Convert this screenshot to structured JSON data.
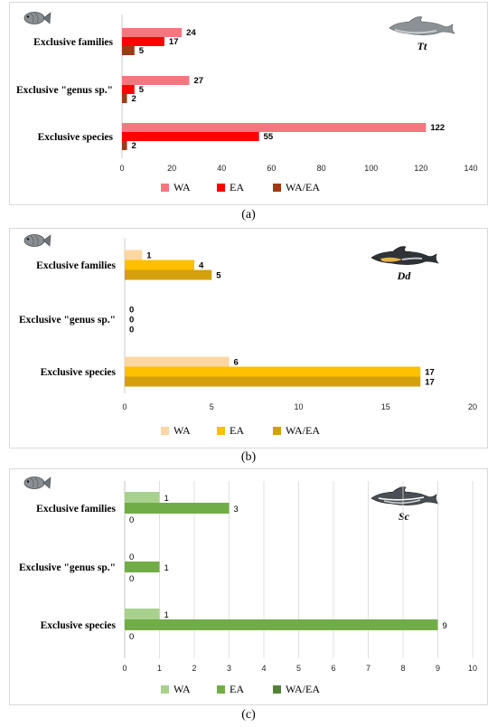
{
  "chart_data": [
    {
      "type": "bar",
      "orientation": "horizontal",
      "panel": "a",
      "caption": "(a)",
      "species_code": "Tt",
      "categories": [
        "Exclusive families",
        "Exclusive \"genus sp.\"",
        "Exclusive species"
      ],
      "series": [
        {
          "name": "WA",
          "color": "#f4777f",
          "values": [
            24,
            27,
            122
          ]
        },
        {
          "name": "EA",
          "color": "#ff0000",
          "values": [
            17,
            5,
            55
          ]
        },
        {
          "name": "WA/EA",
          "color": "#9e3a14",
          "values": [
            5,
            2,
            2
          ]
        }
      ],
      "xlim": [
        0,
        140
      ],
      "xticks": [
        0,
        20,
        40,
        60,
        80,
        100,
        120,
        140
      ],
      "legend": "bottom",
      "grid": false,
      "dlabel_bold": true
    },
    {
      "type": "bar",
      "orientation": "horizontal",
      "panel": "b",
      "caption": "(b)",
      "species_code": "Dd",
      "categories": [
        "Exclusive families",
        "Exclusive \"genus sp.\"",
        "Exclusive species"
      ],
      "series": [
        {
          "name": "WA",
          "color": "#fcd7a1",
          "values": [
            1,
            0,
            6
          ]
        },
        {
          "name": "EA",
          "color": "#ffc000",
          "values": [
            4,
            0,
            17
          ]
        },
        {
          "name": "WA/EA",
          "color": "#d4a00b",
          "values": [
            5,
            0,
            17
          ]
        }
      ],
      "xlim": [
        0,
        20
      ],
      "xticks": [
        0,
        5,
        10,
        15,
        20
      ],
      "legend": "bottom",
      "grid": false,
      "dlabel_bold": true
    },
    {
      "type": "bar",
      "orientation": "horizontal",
      "panel": "c",
      "caption": "(c)",
      "species_code": "Sc",
      "categories": [
        "Exclusive families",
        "Exclusive \"genus sp.\"",
        "Exclusive species"
      ],
      "series": [
        {
          "name": "WA",
          "color": "#a9d18e",
          "values": [
            1,
            0,
            1
          ]
        },
        {
          "name": "EA",
          "color": "#70ad47",
          "values": [
            3,
            1,
            9
          ]
        },
        {
          "name": "WA/EA",
          "color": "#548235",
          "values": [
            0,
            0,
            0
          ]
        }
      ],
      "xlim": [
        0,
        10
      ],
      "xticks": [
        0,
        1,
        2,
        3,
        4,
        5,
        6,
        7,
        8,
        9,
        10
      ],
      "legend": "bottom",
      "grid": true,
      "dlabel_bold": false
    }
  ]
}
